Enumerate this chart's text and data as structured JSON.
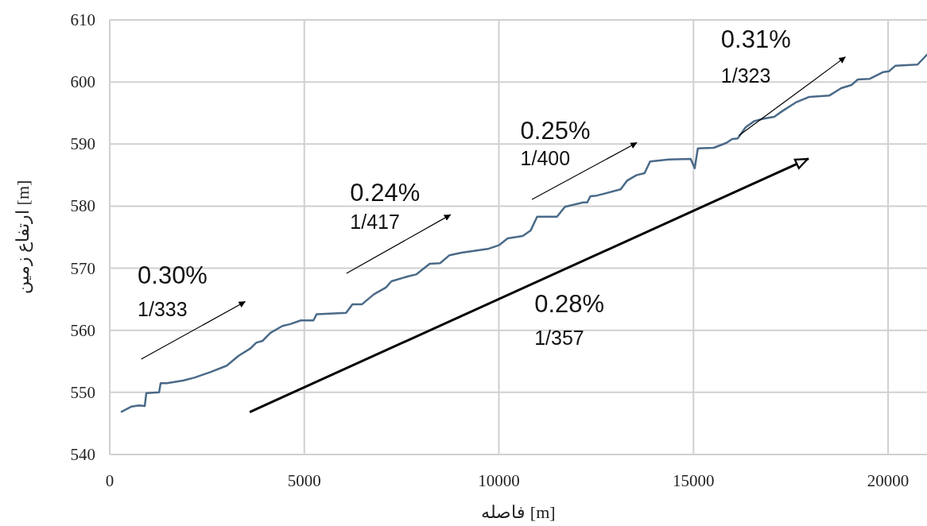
{
  "chart_data": {
    "type": "line",
    "xlabel": "فاصله [m]",
    "ylabel": "ارتفاع زمین [m]",
    "xlim": [
      0,
      21000
    ],
    "xticks": [
      0,
      5000,
      10000,
      15000,
      20000
    ],
    "ylim": [
      540,
      610
    ],
    "yticks": [
      540,
      550,
      560,
      570,
      580,
      590,
      600,
      610
    ],
    "grid": true,
    "series": [
      {
        "color": "#4a6a88",
        "x": [
          307,
          552,
          757,
          900,
          941,
          1268,
          1309,
          1472,
          1881,
          2188,
          2597,
          3006,
          3313,
          3620,
          3763,
          3926,
          4131,
          4438,
          4642,
          4908,
          5235,
          5317,
          6074,
          6237,
          6483,
          6789,
          7096,
          7239,
          7669,
          7873,
          8221,
          8487,
          8732,
          9039,
          9714,
          10000,
          10225,
          10613,
          10818,
          10982,
          11493,
          11697,
          12168,
          12270,
          12352,
          12515,
          13129,
          13292,
          13538,
          13742,
          13885,
          14356,
          14928,
          15031,
          15112,
          15521,
          15849,
          15992,
          16135,
          16339,
          16564,
          16810,
          17076,
          17280,
          17628,
          17975,
          18487,
          18793,
          19059,
          19223,
          19530,
          19877,
          20020,
          20184,
          20757,
          21000
        ],
        "values": [
          546.9,
          547.7,
          547.9,
          547.8,
          549.9,
          550.0,
          551.5,
          551.5,
          551.9,
          552.4,
          553.3,
          554.3,
          555.9,
          557.1,
          558.0,
          558.3,
          559.6,
          560.7,
          561.0,
          561.6,
          561.6,
          562.6,
          562.8,
          564.2,
          564.2,
          565.8,
          566.9,
          567.9,
          568.7,
          569.0,
          570.7,
          570.8,
          572.1,
          572.5,
          573.1,
          573.7,
          574.8,
          575.2,
          576.1,
          578.3,
          578.3,
          579.9,
          580.6,
          580.6,
          581.6,
          581.7,
          582.7,
          584.1,
          585.0,
          585.3,
          587.2,
          587.5,
          587.6,
          586.1,
          589.3,
          589.4,
          590.2,
          590.8,
          590.9,
          592.7,
          593.7,
          594.1,
          594.4,
          595.3,
          596.7,
          597.6,
          597.8,
          599.0,
          599.5,
          600.4,
          600.5,
          601.6,
          601.7,
          602.6,
          602.8,
          604.4
        ]
      },
      {
        "type": "line",
        "color": "#000000",
        "x": [
          3620,
          17935
        ],
        "values": [
          546.9,
          587.6
        ]
      },
      {
        "type": "line",
        "color": "#000000",
        "x": [
          818,
          3476
        ],
        "values": [
          555.4,
          564.6
        ]
      },
      {
        "type": "line",
        "color": "#000000",
        "x": [
          6094,
          8753
        ],
        "values": [
          569.2,
          578.6
        ]
      },
      {
        "type": "line",
        "color": "#000000",
        "x": [
          10859,
          13538
        ],
        "values": [
          581.1,
          590.2
        ]
      },
      {
        "type": "line",
        "color": "#000000",
        "x": [
          16176,
          18896
        ],
        "values": [
          591.4,
          604.0
        ]
      }
    ],
    "annotations": [
      "0.30%",
      "1/333",
      "0.24%",
      "1/417",
      "0.25%",
      "1/400",
      "0.31%",
      "1/323",
      "0.28%",
      "1/357"
    ]
  }
}
